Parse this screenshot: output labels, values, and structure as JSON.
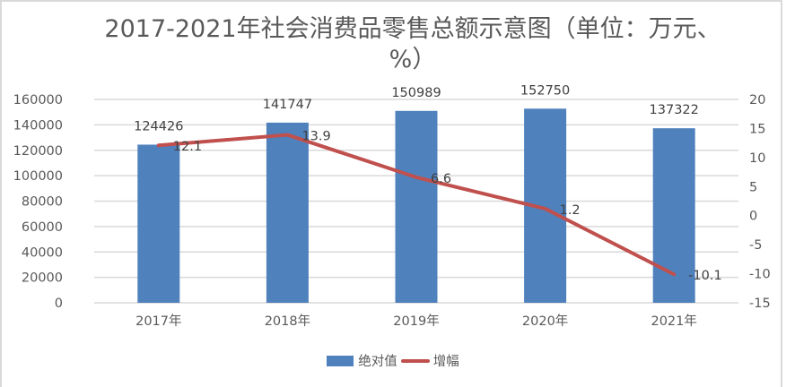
{
  "title": "2017-2021年社会消费品零售总额示意图（单位：万元、%）",
  "title_line1": "2017-2021年社会消费品零售总额示意图（单位：万元、",
  "title_line2": "%）",
  "colors": {
    "bar": "#4f81bd",
    "line": "#c0504d",
    "grid": "#d9d9d9",
    "text": "#595959"
  },
  "legend": {
    "bar_label": "绝对值",
    "line_label": "增幅"
  },
  "left_axis_ticks": [
    "160000",
    "140000",
    "120000",
    "100000",
    "80000",
    "60000",
    "40000",
    "20000",
    "0"
  ],
  "right_axis_ticks": [
    "20",
    "15",
    "10",
    "5",
    "0",
    "-5",
    "-10",
    "-15"
  ],
  "chart_data": {
    "type": "bar+line",
    "title": "2017-2021年社会消费品零售总额示意图（单位：万元、%）",
    "categories": [
      "2017年",
      "2018年",
      "2019年",
      "2020年",
      "2021年"
    ],
    "series": [
      {
        "name": "绝对值",
        "type": "bar",
        "axis": "left",
        "values": [
          124426,
          141747,
          150989,
          152750,
          137322
        ]
      },
      {
        "name": "增幅",
        "type": "line",
        "axis": "right",
        "values": [
          12.1,
          13.9,
          6.6,
          1.2,
          -10.1
        ]
      }
    ],
    "xlabel": "",
    "ylabel_left": "",
    "ylabel_right": "",
    "ylim_left": [
      0,
      160000
    ],
    "ylim_right": [
      -15,
      20
    ],
    "yticks_left": [
      0,
      20000,
      40000,
      60000,
      80000,
      100000,
      120000,
      140000,
      160000
    ],
    "yticks_right": [
      -15,
      -10,
      -5,
      0,
      5,
      10,
      15,
      20
    ],
    "grid": true,
    "legend_position": "bottom"
  }
}
